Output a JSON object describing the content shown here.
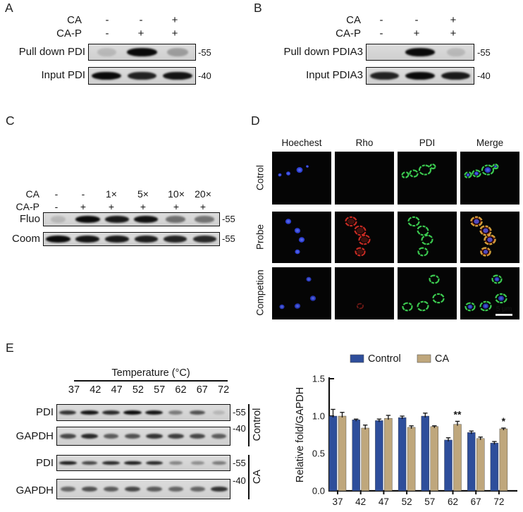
{
  "figure": {
    "panels": {
      "A": {
        "label": "A",
        "conditions": [
          {
            "name": "CA",
            "values": [
              "-",
              "-",
              "+"
            ]
          },
          {
            "name": "CA-P",
            "values": [
              "-",
              "+",
              "+"
            ]
          }
        ],
        "blots": [
          {
            "label": "Pull down PDI",
            "marker": "-55",
            "bands": [
              0.1,
              1,
              0.28
            ]
          },
          {
            "label": "Input PDI",
            "marker": "-40",
            "bands": [
              1,
              0.88,
              0.95
            ]
          }
        ]
      },
      "B": {
        "label": "B",
        "conditions": [
          {
            "name": "CA",
            "values": [
              "-",
              "-",
              "+"
            ]
          },
          {
            "name": "CA-P",
            "values": [
              "-",
              "+",
              "+"
            ]
          }
        ],
        "blots": [
          {
            "label": "Pull down PDIA3",
            "marker": "-55",
            "bands": [
              0,
              1,
              0.04
            ]
          },
          {
            "label": "Input PDIA3",
            "marker": "-40",
            "bands": [
              0.88,
              1,
              0.92
            ]
          }
        ]
      },
      "C": {
        "label": "C",
        "conditions": [
          {
            "name": "CA",
            "values": [
              "-",
              "-",
              "1×",
              "5×",
              "10×",
              "20×"
            ]
          },
          {
            "name": "CA-P",
            "values": [
              "-",
              "+",
              "+",
              "+",
              "+",
              "+"
            ]
          }
        ],
        "blots": [
          {
            "label": "Fluo",
            "marker": "-55",
            "bands": [
              0.04,
              1,
              0.92,
              0.96,
              0.5,
              0.48
            ]
          },
          {
            "label": "Coom",
            "marker": "-55",
            "bands": [
              1,
              0.95,
              0.92,
              0.9,
              0.88,
              0.85
            ]
          }
        ]
      },
      "D": {
        "label": "D",
        "columns": [
          "Hoechest",
          "Rho",
          "PDI",
          "Merge"
        ],
        "rows": [
          {
            "label": "Cotrol",
            "hoechest": 1,
            "rho": 0,
            "pdi": 1
          },
          {
            "label": "Probe",
            "hoechest": 1,
            "rho": 1,
            "pdi": 1
          },
          {
            "label": "Competion",
            "hoechest": 0.85,
            "rho": 0.3,
            "pdi": 1
          }
        ],
        "scale_bar": "5 μm",
        "channel_colors": {
          "hoechest": "#2d3fd4",
          "rho": "#c52a22",
          "pdi": "#3bc94f",
          "overlap": "#d0a03a"
        }
      },
      "E": {
        "label": "E",
        "temp_header": "Temperature (°C)",
        "temperatures": [
          "37",
          "42",
          "47",
          "52",
          "57",
          "62",
          "67",
          "72"
        ],
        "groups": [
          {
            "name": "Control",
            "blots": [
              {
                "label": "PDI",
                "marker": "-55",
                "bands": [
                  0.8,
                  0.95,
                  0.85,
                  1,
                  0.95,
                  0.45,
                  0.65,
                  0.15
                ]
              },
              {
                "label": "GAPDH",
                "marker": "-40",
                "bands": [
                  0.7,
                  0.85,
                  0.6,
                  0.65,
                  0.8,
                  0.75,
                  0.7,
                  0.6
                ]
              }
            ]
          },
          {
            "name": "CA",
            "blots": [
              {
                "label": "PDI",
                "marker": "-55",
                "bands": [
                  0.9,
                  0.7,
                  0.85,
                  0.9,
                  0.85,
                  0.4,
                  0.35,
                  0.45
                ]
              },
              {
                "label": "GAPDH",
                "marker": "-40",
                "bands": [
                  0.55,
                  0.65,
                  0.6,
                  0.7,
                  0.6,
                  0.55,
                  0.55,
                  0.8
                ]
              }
            ]
          }
        ]
      }
    }
  },
  "chart_data": {
    "type": "bar",
    "categories": [
      "37",
      "42",
      "47",
      "52",
      "57",
      "62",
      "67",
      "72"
    ],
    "series": [
      {
        "name": "Control",
        "color": "#2e4e9b",
        "values": [
          1.0,
          0.95,
          0.94,
          0.98,
          1.0,
          0.68,
          0.78,
          0.64
        ],
        "errors": [
          0.09,
          0.01,
          0.02,
          0.02,
          0.04,
          0.03,
          0.02,
          0.02
        ]
      },
      {
        "name": "CA",
        "color": "#bfa77c",
        "values": [
          1.0,
          0.84,
          0.97,
          0.85,
          0.86,
          0.89,
          0.7,
          0.83
        ],
        "errors": [
          0.05,
          0.04,
          0.04,
          0.02,
          0.01,
          0.04,
          0.02,
          0.01
        ]
      }
    ],
    "significance": [
      {
        "category": "62",
        "series": "CA",
        "mark": "**"
      },
      {
        "category": "72",
        "series": "CA",
        "mark": "*"
      }
    ],
    "xlabel": "",
    "ylabel": "Relative fold/GAPDH",
    "yticks": [
      0.0,
      0.5,
      1.0,
      1.5
    ],
    "ylim": [
      0,
      1.5
    ],
    "grid": false,
    "legend_position": "top"
  }
}
